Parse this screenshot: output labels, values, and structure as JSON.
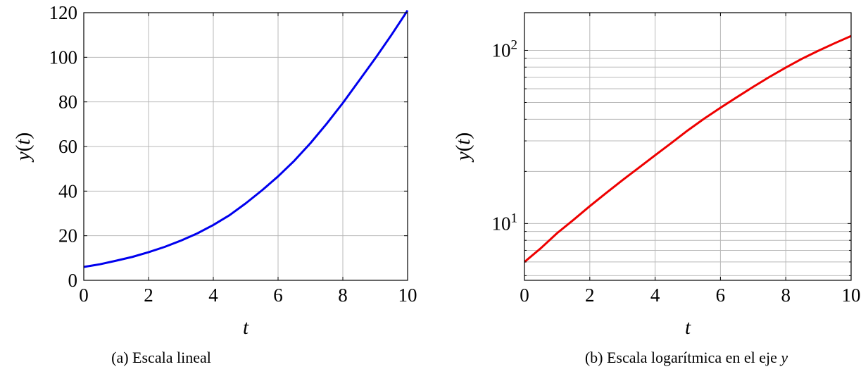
{
  "chart_data": [
    {
      "type": "line",
      "scale": "linear",
      "caption": "(a) Escala lineal",
      "xlabel": "t",
      "ylabel": "y(t)",
      "xlim": [
        0,
        10
      ],
      "ylim": [
        0,
        120
      ],
      "xticks": [
        0,
        2,
        4,
        6,
        8,
        10
      ],
      "yticks": [
        0,
        20,
        40,
        60,
        80,
        100,
        120
      ],
      "grid": true,
      "series": [
        {
          "color": "#0000ee",
          "x": [
            0,
            0.5,
            1,
            1.5,
            2,
            2.5,
            3,
            3.5,
            4,
            4.5,
            5,
            5.5,
            6,
            6.5,
            7,
            7.5,
            8,
            8.5,
            9,
            9.5,
            10
          ],
          "y": [
            6,
            7.2,
            8.8,
            10.5,
            12.6,
            15,
            17.8,
            21,
            24.8,
            29.2,
            34.5,
            40.3,
            46.6,
            53.6,
            61.5,
            70.2,
            79.5,
            89.5,
            99.5,
            110,
            121
          ]
        }
      ]
    },
    {
      "type": "line",
      "scale": "log-y",
      "caption": "(b) Escala logarítmica en el eje y",
      "xlabel": "t",
      "ylabel": "y(t)",
      "xlim": [
        0,
        10
      ],
      "ylim": [
        4.7,
        165
      ],
      "xticks": [
        0,
        2,
        4,
        6,
        8,
        10
      ],
      "yticks_major": [
        10,
        100
      ],
      "ytick_labels": [
        "10^1",
        "10^2"
      ],
      "grid": true,
      "series": [
        {
          "color": "#ee0000",
          "x": [
            0,
            0.5,
            1,
            1.5,
            2,
            2.5,
            3,
            3.5,
            4,
            4.5,
            5,
            5.5,
            6,
            6.5,
            7,
            7.5,
            8,
            8.5,
            9,
            9.5,
            10
          ],
          "y": [
            6,
            7.2,
            8.8,
            10.5,
            12.6,
            15,
            17.8,
            21,
            24.8,
            29.2,
            34.5,
            40.3,
            46.6,
            53.6,
            61.5,
            70.2,
            79.5,
            89.5,
            99.5,
            110,
            121
          ]
        }
      ]
    }
  ]
}
